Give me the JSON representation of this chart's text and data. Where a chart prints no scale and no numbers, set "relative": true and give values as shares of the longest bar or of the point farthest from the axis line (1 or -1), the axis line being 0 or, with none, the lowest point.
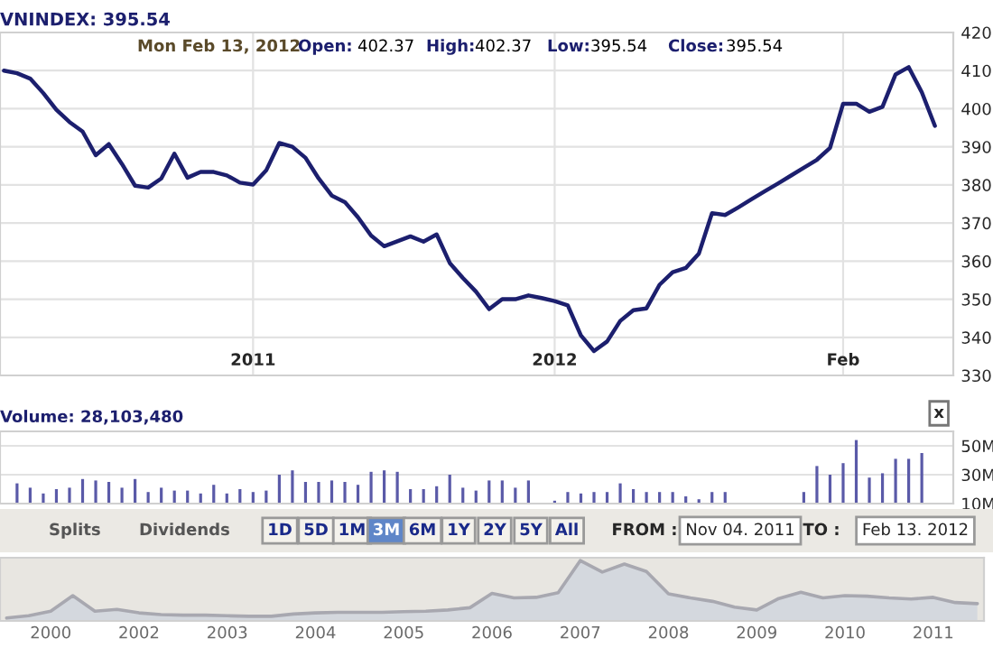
{
  "chart_data": [
    {
      "type": "line",
      "title": "VNINDEX: 395.54",
      "annotations": [
        "Mon Feb 13, 2012",
        "Open:",
        "402.37",
        "High:",
        "402.37",
        "Low:",
        "395.54",
        "Close:",
        "395.54"
      ],
      "categories": [
        null,
        null,
        null,
        null,
        null,
        null,
        null,
        null,
        null,
        null,
        null,
        null,
        null,
        null,
        null,
        null,
        null,
        null,
        null,
        "2011",
        null,
        null,
        null,
        null,
        null,
        null,
        null,
        null,
        null,
        null,
        null,
        null,
        null,
        null,
        null,
        null,
        null,
        null,
        null,
        null,
        null,
        null,
        "2012",
        null,
        null,
        null,
        null,
        null,
        null,
        null,
        null,
        null,
        null,
        null,
        null,
        null,
        null,
        null,
        null,
        null,
        null,
        null,
        null,
        null,
        "Feb",
        null,
        null,
        null,
        null,
        null,
        null,
        null
      ],
      "series": [
        {
          "color": "#1c1f6e",
          "values": [
            410.0,
            409.3,
            407.9,
            404.1,
            399.7,
            396.5,
            394.0,
            387.8,
            390.7,
            385.5,
            379.8,
            379.3,
            381.7,
            388.2,
            381.9,
            383.4,
            383.4,
            382.5,
            380.6,
            380.1,
            383.8,
            391.0,
            390.0,
            387.1,
            381.7,
            377.2,
            375.5,
            371.5,
            366.7,
            363.9,
            365.2,
            366.5,
            365.1,
            367.0,
            359.5,
            355.6,
            352.0,
            347.4,
            350.0,
            350.0,
            351.0,
            350.3,
            349.5,
            348.4,
            340.5,
            336.4,
            338.9,
            344.3,
            347.1,
            347.6,
            353.8,
            357.1,
            358.2,
            362.0,
            372.6,
            372.1,
            374.1,
            376.2,
            378.3,
            380.3,
            382.4,
            384.5,
            386.6,
            389.7,
            401.3,
            401.3,
            399.2,
            400.5,
            409.0,
            410.9,
            404.3,
            395.5
          ]
        }
      ],
      "ylim": [
        330,
        420
      ],
      "yticks": [
        330,
        340,
        350,
        360,
        370,
        380,
        390,
        400,
        410,
        420
      ],
      "grid": true
    },
    {
      "type": "bar",
      "title": "Volume: 28,103,480",
      "annotations": [
        "x"
      ],
      "categories": [
        null,
        null,
        null,
        null,
        null,
        null,
        null,
        null,
        null,
        null,
        null,
        null,
        null,
        null,
        null,
        null,
        null,
        null,
        null,
        null,
        null,
        null,
        null,
        null,
        null,
        null,
        null,
        null,
        null,
        null,
        null,
        null,
        null,
        null,
        null,
        null,
        null,
        null,
        null,
        null,
        null,
        null,
        null,
        null,
        null,
        null,
        null,
        null,
        null,
        null,
        null,
        null,
        null,
        null,
        null,
        null,
        null,
        null,
        null,
        null,
        null,
        null,
        null,
        null,
        null,
        null,
        null,
        null,
        null,
        null,
        null,
        null
      ],
      "series": [
        {
          "color": "#5a5aa8",
          "values": [
            null,
            24,
            21,
            17,
            20,
            21,
            27,
            26,
            25,
            21,
            27,
            18,
            21,
            19,
            19,
            17,
            23,
            17,
            20,
            18,
            19,
            30,
            33,
            25,
            25,
            26,
            25,
            23,
            32,
            33,
            32,
            20,
            20,
            22,
            30,
            21,
            19,
            26,
            26,
            21,
            26,
            null,
            12,
            18,
            17,
            18,
            18,
            24,
            20,
            18,
            18,
            18,
            15,
            13,
            18,
            18,
            null,
            null,
            null,
            null,
            null,
            18,
            36,
            30,
            38,
            54,
            28,
            31,
            41,
            41,
            45,
            null
          ]
        }
      ],
      "ylim": [
        10,
        60
      ],
      "yticks": [
        {
          "value": 10,
          "label": "10M"
        },
        {
          "value": 30,
          "label": "30M"
        },
        {
          "value": 50,
          "label": "50M"
        }
      ],
      "grid": "y"
    },
    {
      "type": "other",
      "annotations": [
        "Splits",
        "Dividends",
        "1D",
        "5D",
        "1M",
        "3M",
        "6M",
        "1Y",
        "2Y",
        "5Y",
        "All",
        "FROM :",
        "Nov 04. 2011",
        "TO :",
        "Feb 13. 2012"
      ]
    },
    {
      "type": "area",
      "relative": true,
      "categories": [
        null,
        null,
        "2000",
        null,
        null,
        null,
        "2002",
        null,
        null,
        null,
        "2003",
        null,
        null,
        null,
        "2004",
        null,
        null,
        null,
        "2005",
        null,
        null,
        null,
        "2006",
        null,
        null,
        null,
        "2007",
        null,
        null,
        null,
        "2008",
        null,
        null,
        null,
        "2009",
        null,
        null,
        null,
        "2010",
        null,
        null,
        null,
        "2011",
        null,
        null
      ],
      "series": [
        {
          "color": "#a8a8b0",
          "values": [
            0,
            0.04,
            0.12,
            0.39,
            0.12,
            0.15,
            0.09,
            0.06,
            0.05,
            0.05,
            0.04,
            0.03,
            0.03,
            0.07,
            0.09,
            0.1,
            0.1,
            0.1,
            0.11,
            0.12,
            0.14,
            0.18,
            0.43,
            0.35,
            0.36,
            0.44,
            1.0,
            0.8,
            0.94,
            0.81,
            0.42,
            0.35,
            0.29,
            0.19,
            0.14,
            0.34,
            0.45,
            0.35,
            0.39,
            0.38,
            0.35,
            0.33,
            0.36,
            0.27,
            0.25
          ]
        }
      ]
    }
  ]
}
